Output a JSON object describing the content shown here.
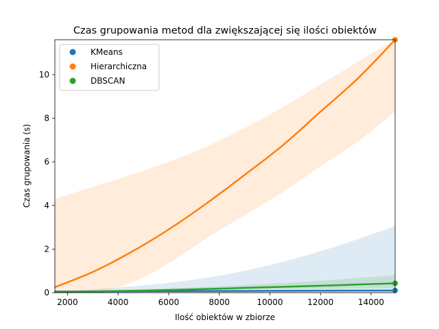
{
  "chart_data": {
    "type": "line",
    "title": "Czas grupowania metod dla zwiększającej się ilości obiektów",
    "xlabel": "Ilość obiektów w zbiorze",
    "ylabel": "Czas grupowania (s)",
    "xlim": [
      1500,
      14950
    ],
    "ylim": [
      0,
      11.6
    ],
    "xticks": [
      2000,
      4000,
      6000,
      8000,
      10000,
      12000,
      14000
    ],
    "yticks": [
      0,
      2,
      4,
      6,
      8,
      10
    ],
    "grid": false,
    "legend_position": "top-left",
    "series": [
      {
        "name": "KMeans",
        "color": "#1f77b4",
        "x": [
          1500,
          3000,
          6000,
          9000,
          12000,
          14950
        ],
        "y": [
          0.05,
          0.06,
          0.07,
          0.08,
          0.09,
          0.1
        ],
        "ci_lower": [
          0.0,
          0.0,
          0.0,
          0.0,
          0.0,
          0.0
        ],
        "ci_upper": [
          0.05,
          0.15,
          0.45,
          1.0,
          1.9,
          3.05
        ]
      },
      {
        "name": "Hierarchiczna",
        "color": "#ff7f0e",
        "x": [
          1500,
          3000,
          4500,
          6000,
          7500,
          9000,
          10500,
          12000,
          13500,
          14950
        ],
        "y": [
          0.25,
          0.95,
          1.85,
          2.9,
          4.1,
          5.4,
          6.75,
          8.3,
          9.85,
          11.6
        ],
        "ci_lower": [
          0.0,
          0.0,
          0.45,
          1.35,
          2.5,
          3.55,
          4.6,
          5.8,
          6.95,
          8.3
        ],
        "ci_upper": [
          4.3,
          4.85,
          5.4,
          6.0,
          6.7,
          7.55,
          8.5,
          9.55,
          10.6,
          11.6
        ]
      },
      {
        "name": "DBSCAN",
        "color": "#2ca02c",
        "x": [
          1500,
          3000,
          6000,
          9000,
          12000,
          14950
        ],
        "y": [
          0.02,
          0.05,
          0.12,
          0.22,
          0.32,
          0.43
        ],
        "ci_lower": [
          0.0,
          0.02,
          0.08,
          0.14,
          0.18,
          0.2
        ],
        "ci_upper": [
          0.05,
          0.1,
          0.2,
          0.35,
          0.55,
          0.8
        ]
      }
    ],
    "markers": [
      {
        "series": "KMeans",
        "x": 14950,
        "y": 0.1
      },
      {
        "series": "Hierarchiczna",
        "x": 14950,
        "y": 11.6
      },
      {
        "series": "DBSCAN",
        "x": 14950,
        "y": 0.43
      }
    ]
  }
}
